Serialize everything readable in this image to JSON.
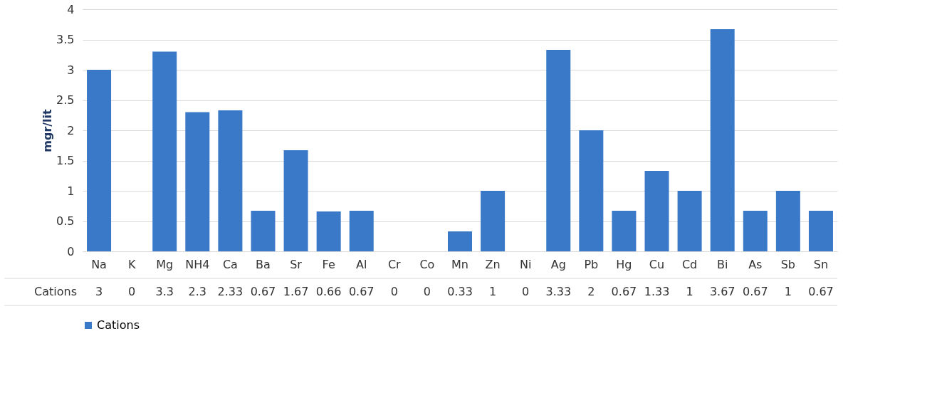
{
  "chart_data": {
    "type": "bar",
    "ylabel": "mgr/lit",
    "categories": [
      "Na",
      "K",
      "Mg",
      "NH4",
      "Ca",
      "Ba",
      "Sr",
      "Fe",
      "Al",
      "Cr",
      "Co",
      "Mn",
      "Zn",
      "Ni",
      "Ag",
      "Pb",
      "Hg",
      "Cu",
      "Cd",
      "Bi",
      "As",
      "Sb",
      "Sn"
    ],
    "series": [
      {
        "name": "Cations",
        "color": "#3a78c8",
        "values": [
          3,
          0,
          3.3,
          2.3,
          2.33,
          0.67,
          1.67,
          0.66,
          0.67,
          0,
          0,
          0.33,
          1,
          0,
          3.33,
          2,
          0.67,
          1.33,
          1,
          3.67,
          0.67,
          1,
          0.67
        ]
      }
    ],
    "ylim": [
      0,
      4
    ],
    "yticks": [
      0,
      0.5,
      1,
      1.5,
      2,
      2.5,
      3,
      3.5,
      4
    ],
    "grid": "y",
    "legend": "bottom",
    "data_labels": true
  }
}
